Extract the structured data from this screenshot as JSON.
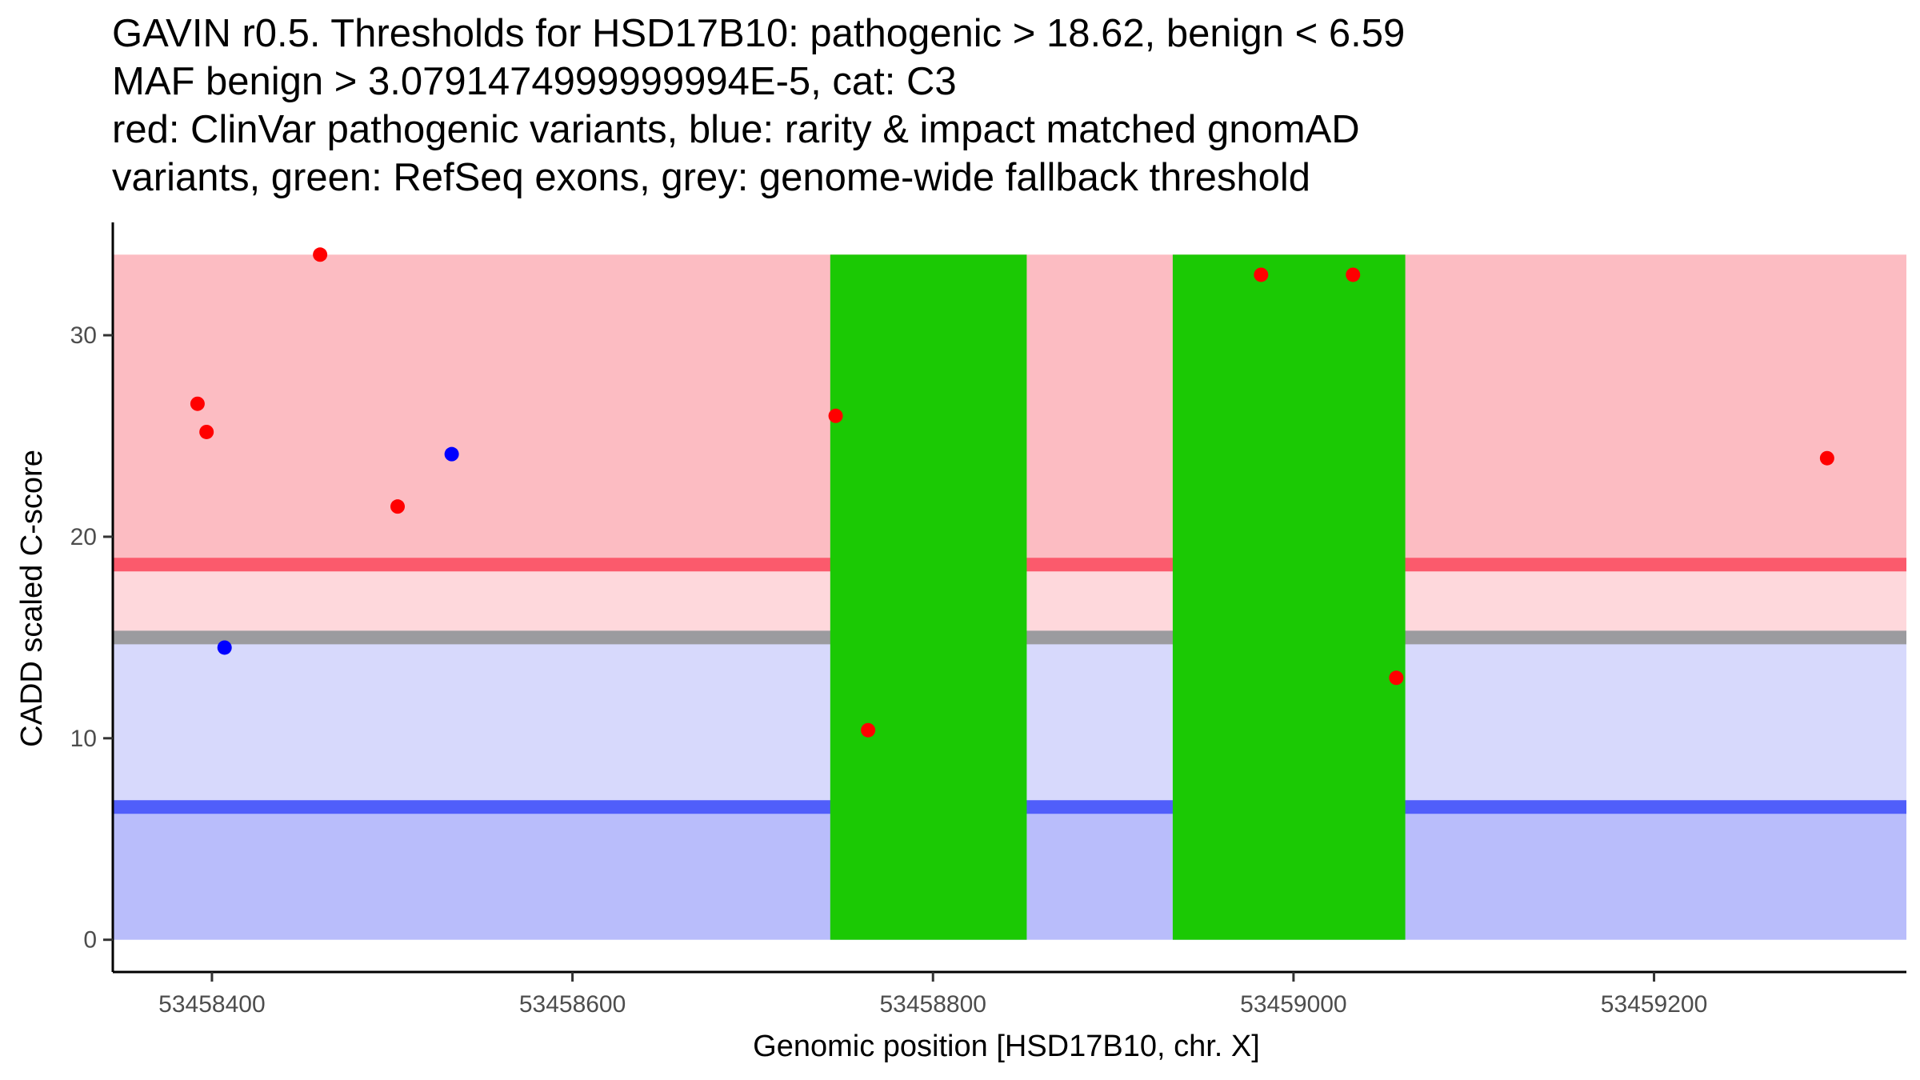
{
  "title": {
    "lines": [
      "GAVIN r0.5. Thresholds for HSD17B10: pathogenic > 18.62, benign < 6.59",
      "MAF benign > 3.0791474999999994E-5, cat: C3",
      "red: ClinVar pathogenic variants, blue: rarity & impact matched gnomAD",
      "variants, green: RefSeq exons, grey: genome-wide fallback threshold"
    ]
  },
  "chart_data": {
    "type": "scatter",
    "xlabel": "Genomic position [HSD17B10, chr. X]",
    "ylabel": "CADD scaled C-score",
    "xlim": [
      53458345,
      53459340
    ],
    "ylim": [
      -1.6,
      35.6
    ],
    "x_ticks": [
      53458400,
      53458600,
      53458800,
      53459000,
      53459200
    ],
    "y_ticks": [
      0,
      10,
      20,
      30
    ],
    "grid": false,
    "legend": "none",
    "region_x_range": [
      53458345,
      53459340
    ],
    "regions": [
      {
        "name": "pathogenic zone",
        "y0": 18.62,
        "y1": 34,
        "color": "#fcbcc2"
      },
      {
        "name": "above fallback",
        "y0": 15.0,
        "y1": 18.62,
        "color": "#fed8dc"
      },
      {
        "name": "below fallback",
        "y0": 6.59,
        "y1": 15.0,
        "color": "#d7d9fc"
      },
      {
        "name": "benign zone",
        "y0": 0,
        "y1": 6.59,
        "color": "#b9bdfb"
      }
    ],
    "threshold_lines": [
      {
        "name": "pathogenic threshold",
        "y": 18.62,
        "color": "#fb5a6c"
      },
      {
        "name": "genome-wide fallback threshold",
        "y": 15.0,
        "color": "#9b9b9f"
      },
      {
        "name": "benign threshold",
        "y": 6.59,
        "color": "#505efa"
      }
    ],
    "exons": [
      {
        "x0": 53458743,
        "x1": 53458852,
        "y0": 0,
        "y1": 34,
        "color": "#1bc904"
      },
      {
        "x0": 53458933,
        "x1": 53459062,
        "y0": 0,
        "y1": 34,
        "color": "#1bc904"
      }
    ],
    "series": [
      {
        "color": "#ff0000",
        "x": [
          53458392,
          53458397,
          53458460,
          53458503,
          53458746,
          53458764,
          53458982,
          53459033,
          53459057,
          53459296
        ],
        "y": [
          26.6,
          25.2,
          34.0,
          21.5,
          26.0,
          10.4,
          33.0,
          33.0,
          13.0,
          23.9
        ]
      },
      {
        "color": "#0000ff",
        "x": [
          53458407,
          53458533
        ],
        "y": [
          14.5,
          24.1
        ]
      }
    ]
  }
}
